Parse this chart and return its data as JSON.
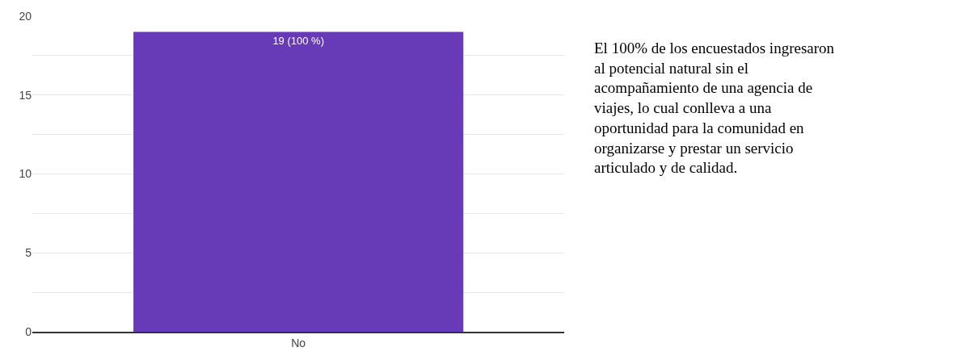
{
  "chart_data": {
    "type": "bar",
    "categories": [
      "No"
    ],
    "values": [
      19
    ],
    "color": "#673ab7",
    "value_labels": [
      "19 (100 %)"
    ],
    "ylim": [
      0,
      20
    ],
    "yticks": [
      0,
      {
        "value": 2.5,
        "label": null
      },
      5,
      {
        "value": 7.5,
        "label": null
      },
      10,
      {
        "value": 12.5,
        "label": null
      },
      15,
      {
        "value": 17.5,
        "label": null
      },
      20
    ],
    "grid": "y",
    "annotations": [
      "El 100% de los encuestados ingresaron al potencial natural sin el acompañamiento de una agencia de viajes, lo cual conlleva a una oportunidad para la comunidad en organizarse y prestar un servicio articulado y de calidad."
    ]
  }
}
